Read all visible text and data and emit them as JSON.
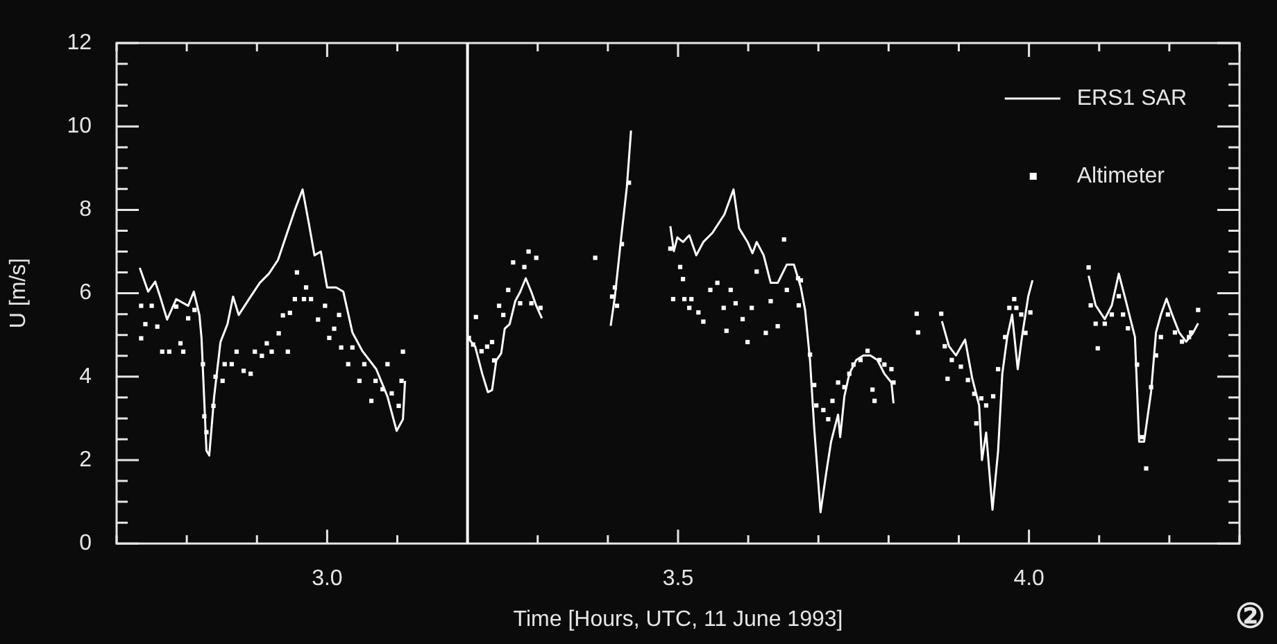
{
  "chart_data": {
    "type": "line",
    "xlabel": "Time [Hours, UTC, 11 June 1993]",
    "ylabel": "U [m/s]",
    "xlim": [
      2.7,
      4.3
    ],
    "xticks": [
      {
        "value": 2.7,
        "label": null
      },
      {
        "value": 2.8,
        "label": null
      },
      {
        "value": 2.9,
        "label": null
      },
      {
        "value": 3.0,
        "label": "3.0"
      },
      {
        "value": 3.1,
        "label": null
      },
      {
        "value": 3.2,
        "label": null
      },
      {
        "value": 3.3,
        "label": null
      },
      {
        "value": 3.4,
        "label": null
      },
      {
        "value": 3.5,
        "label": "3.5"
      },
      {
        "value": 3.6,
        "label": null
      },
      {
        "value": 3.7,
        "label": null
      },
      {
        "value": 3.8,
        "label": null
      },
      {
        "value": 3.9,
        "label": null
      },
      {
        "value": 4.0,
        "label": "4.0"
      },
      {
        "value": 4.1,
        "label": null
      },
      {
        "value": 4.2,
        "label": null
      },
      {
        "value": 4.3,
        "label": null
      }
    ],
    "ylim": [
      0,
      12
    ],
    "yticks": [
      0,
      {
        "value": 0.5,
        "label": null
      },
      {
        "value": 1,
        "label": null
      },
      {
        "value": 1.5,
        "label": null
      },
      2,
      {
        "value": 2.5,
        "label": null
      },
      {
        "value": 3,
        "label": null
      },
      {
        "value": 3.5,
        "label": null
      },
      4,
      {
        "value": 4.5,
        "label": null
      },
      {
        "value": 5,
        "label": null
      },
      {
        "value": 5.5,
        "label": null
      },
      6,
      {
        "value": 6.5,
        "label": null
      },
      {
        "value": 7,
        "label": null
      },
      {
        "value": 7.5,
        "label": null
      },
      8,
      {
        "value": 8.5,
        "label": null
      },
      {
        "value": 9,
        "label": null
      },
      {
        "value": 9.5,
        "label": null
      },
      10,
      {
        "value": 10.5,
        "label": null
      },
      {
        "value": 11,
        "label": null
      },
      {
        "value": 11.5,
        "label": null
      },
      12
    ],
    "grid": false,
    "legend": "top right",
    "ref_lines": [
      {
        "axis": "x",
        "value": 3.2,
        "color": "#ffffff"
      }
    ],
    "annotations": [
      "②"
    ],
    "series": [
      {
        "name": "ERS1 SAR",
        "type": "line",
        "color": "#ffffff",
        "line_style": "solid",
        "marker": "none",
        "x": [
          2.733,
          2.745,
          2.755,
          2.762,
          2.772,
          2.785,
          2.802,
          2.81,
          2.818,
          2.821,
          2.828,
          2.832,
          2.839,
          2.848,
          2.858,
          2.866,
          2.874,
          2.891,
          2.904,
          2.917,
          2.93,
          2.942,
          2.954,
          2.965,
          2.974,
          2.982,
          2.991,
          3.0,
          3.013,
          3.023,
          3.036,
          3.05,
          3.07,
          3.086,
          3.099,
          3.108,
          3.111,
          3.15,
          3.2,
          3.211,
          3.221,
          3.229,
          3.235,
          3.241,
          3.248,
          3.253,
          3.26,
          3.268,
          3.275,
          3.283,
          3.291,
          3.298,
          3.306,
          3.35,
          3.404,
          3.41,
          3.419,
          3.427,
          3.433,
          3.46,
          3.489,
          3.494,
          3.499,
          3.507,
          3.516,
          3.526,
          3.536,
          3.549,
          3.566,
          3.579,
          3.587,
          3.599,
          3.606,
          3.612,
          3.622,
          3.632,
          3.642,
          3.655,
          3.665,
          3.675,
          3.681,
          3.688,
          3.694,
          3.703,
          3.711,
          3.718,
          3.728,
          3.731,
          3.737,
          3.744,
          3.754,
          3.764,
          3.774,
          3.784,
          3.794,
          3.804,
          3.807,
          3.84,
          3.876,
          3.886,
          3.896,
          3.909,
          3.919,
          3.929,
          3.933,
          3.939,
          3.948,
          3.956,
          3.962,
          3.969,
          3.976,
          3.984,
          3.99,
          3.999,
          4.005,
          4.045,
          4.085,
          4.095,
          4.108,
          4.118,
          4.128,
          4.138,
          4.151,
          4.157,
          4.164,
          4.174,
          4.181,
          4.188,
          4.196,
          4.204,
          4.214,
          4.224,
          4.234,
          4.241
        ],
        "values": [
          6.61,
          6.04,
          6.28,
          5.92,
          5.37,
          5.86,
          5.7,
          6.04,
          5.48,
          4.93,
          2.23,
          2.11,
          3.52,
          4.83,
          5.26,
          5.92,
          5.48,
          5.92,
          6.25,
          6.47,
          6.8,
          7.4,
          8.0,
          8.49,
          7.67,
          6.91,
          7.0,
          6.14,
          6.14,
          6.04,
          5.06,
          4.62,
          4.18,
          3.52,
          2.7,
          2.98,
          3.9,
          null,
          4.94,
          4.72,
          4.07,
          3.63,
          3.68,
          4.39,
          4.56,
          5.15,
          5.26,
          5.81,
          6.03,
          6.36,
          6.03,
          5.7,
          5.4,
          null,
          5.22,
          5.92,
          7.34,
          8.54,
          9.9,
          null,
          7.61,
          7.01,
          7.34,
          7.23,
          7.39,
          6.91,
          7.23,
          7.45,
          7.89,
          8.49,
          7.56,
          7.23,
          6.96,
          7.23,
          6.91,
          6.25,
          6.25,
          6.69,
          6.69,
          6.14,
          5.6,
          4.4,
          2.77,
          0.75,
          1.68,
          2.44,
          3.09,
          2.55,
          3.53,
          4.07,
          4.4,
          4.51,
          4.51,
          4.4,
          4.07,
          3.86,
          3.36,
          null,
          5.33,
          4.73,
          4.51,
          4.89,
          3.97,
          3.31,
          2.0,
          2.66,
          0.81,
          2.22,
          4.07,
          4.95,
          5.49,
          4.18,
          4.95,
          5.93,
          6.31,
          null,
          6.42,
          5.71,
          5.38,
          5.71,
          6.47,
          5.82,
          4.95,
          2.44,
          2.44,
          3.64,
          5.06,
          5.49,
          5.87,
          5.49,
          5.06,
          4.84,
          5.06,
          5.28
        ]
      },
      {
        "name": "Altimeter",
        "type": "scatter",
        "color": "#ffffff",
        "marker": "square",
        "x": [
          2.735,
          2.741,
          2.735,
          2.75,
          2.758,
          2.765,
          2.775,
          2.785,
          2.791,
          2.795,
          2.802,
          2.811,
          2.823,
          2.825,
          2.828,
          2.838,
          2.841,
          2.851,
          2.854,
          2.864,
          2.871,
          2.881,
          2.891,
          2.897,
          2.907,
          2.914,
          2.921,
          2.931,
          2.944,
          2.937,
          2.947,
          2.954,
          2.957,
          2.97,
          2.967,
          2.977,
          2.987,
          2.997,
          3.003,
          3.01,
          3.017,
          3.02,
          3.03,
          3.036,
          3.046,
          3.053,
          3.063,
          3.069,
          3.079,
          3.086,
          3.092,
          3.102,
          3.108,
          3.106,
          3.202,
          3.208,
          3.212,
          3.22,
          3.228,
          3.235,
          3.238,
          3.245,
          3.251,
          3.258,
          3.265,
          3.275,
          3.281,
          3.287,
          3.291,
          3.298,
          3.304,
          3.382,
          3.406,
          3.41,
          3.413,
          3.42,
          3.43,
          3.489,
          3.503,
          3.507,
          3.493,
          3.509,
          3.519,
          3.516,
          3.529,
          3.536,
          3.546,
          3.556,
          3.565,
          3.569,
          3.575,
          3.582,
          3.592,
          3.599,
          3.605,
          3.612,
          3.625,
          3.632,
          3.642,
          3.651,
          3.655,
          3.671,
          3.675,
          3.672,
          3.688,
          3.694,
          3.697,
          3.707,
          3.714,
          3.72,
          3.728,
          3.737,
          3.744,
          3.75,
          3.76,
          3.77,
          3.777,
          3.78,
          3.787,
          3.794,
          3.804,
          3.807,
          3.84,
          3.842,
          3.875,
          3.88,
          3.884,
          3.89,
          3.903,
          3.913,
          3.922,
          3.925,
          3.932,
          3.939,
          3.949,
          3.956,
          3.966,
          3.972,
          3.982,
          3.989,
          3.995,
          4.002,
          3.979,
          4.085,
          4.088,
          4.095,
          4.098,
          4.108,
          4.118,
          4.128,
          4.134,
          4.141,
          4.154,
          4.161,
          4.167,
          4.174,
          4.181,
          4.188,
          4.198,
          4.208,
          4.218,
          4.228,
          4.241,
          4.231
        ],
        "values": [
          4.92,
          5.26,
          5.7,
          5.7,
          5.2,
          4.6,
          4.6,
          5.68,
          4.8,
          4.6,
          5.4,
          5.6,
          4.3,
          3.05,
          2.67,
          3.3,
          4.0,
          3.9,
          4.3,
          4.3,
          4.6,
          4.14,
          4.07,
          4.6,
          4.5,
          4.8,
          4.6,
          5.04,
          4.6,
          5.47,
          5.53,
          5.86,
          6.5,
          6.14,
          5.86,
          5.86,
          5.37,
          5.7,
          4.93,
          5.15,
          5.48,
          4.7,
          4.3,
          4.7,
          3.9,
          4.3,
          3.42,
          3.9,
          3.7,
          4.3,
          3.6,
          3.3,
          4.6,
          3.9,
          4.93,
          4.77,
          5.43,
          4.61,
          4.72,
          4.83,
          4.39,
          5.7,
          5.48,
          6.08,
          6.74,
          5.76,
          6.63,
          7.0,
          5.76,
          6.85,
          5.65,
          6.85,
          5.92,
          6.14,
          5.7,
          7.18,
          8.65,
          7.07,
          6.63,
          6.34,
          5.86,
          5.86,
          5.86,
          5.65,
          5.54,
          5.32,
          6.08,
          6.25,
          5.65,
          5.1,
          6.08,
          5.76,
          5.38,
          4.83,
          5.65,
          6.52,
          5.05,
          5.81,
          5.21,
          7.29,
          6.08,
          6.36,
          6.31,
          5.71,
          4.53,
          3.8,
          3.31,
          3.2,
          2.98,
          3.42,
          3.86,
          3.75,
          4.07,
          4.29,
          4.4,
          4.62,
          3.69,
          3.42,
          4.4,
          4.29,
          4.18,
          3.86,
          5.51,
          5.06,
          5.51,
          4.73,
          3.95,
          4.4,
          4.24,
          3.92,
          3.59,
          2.88,
          3.48,
          3.31,
          3.53,
          4.18,
          4.95,
          5.65,
          5.65,
          5.49,
          5.05,
          5.54,
          5.86,
          6.62,
          5.71,
          5.27,
          4.68,
          5.27,
          5.49,
          5.93,
          5.49,
          5.16,
          4.29,
          2.55,
          1.8,
          3.75,
          4.51,
          4.95,
          5.49,
          5.06,
          4.84,
          4.95,
          5.6,
          5.06
        ]
      }
    ]
  }
}
